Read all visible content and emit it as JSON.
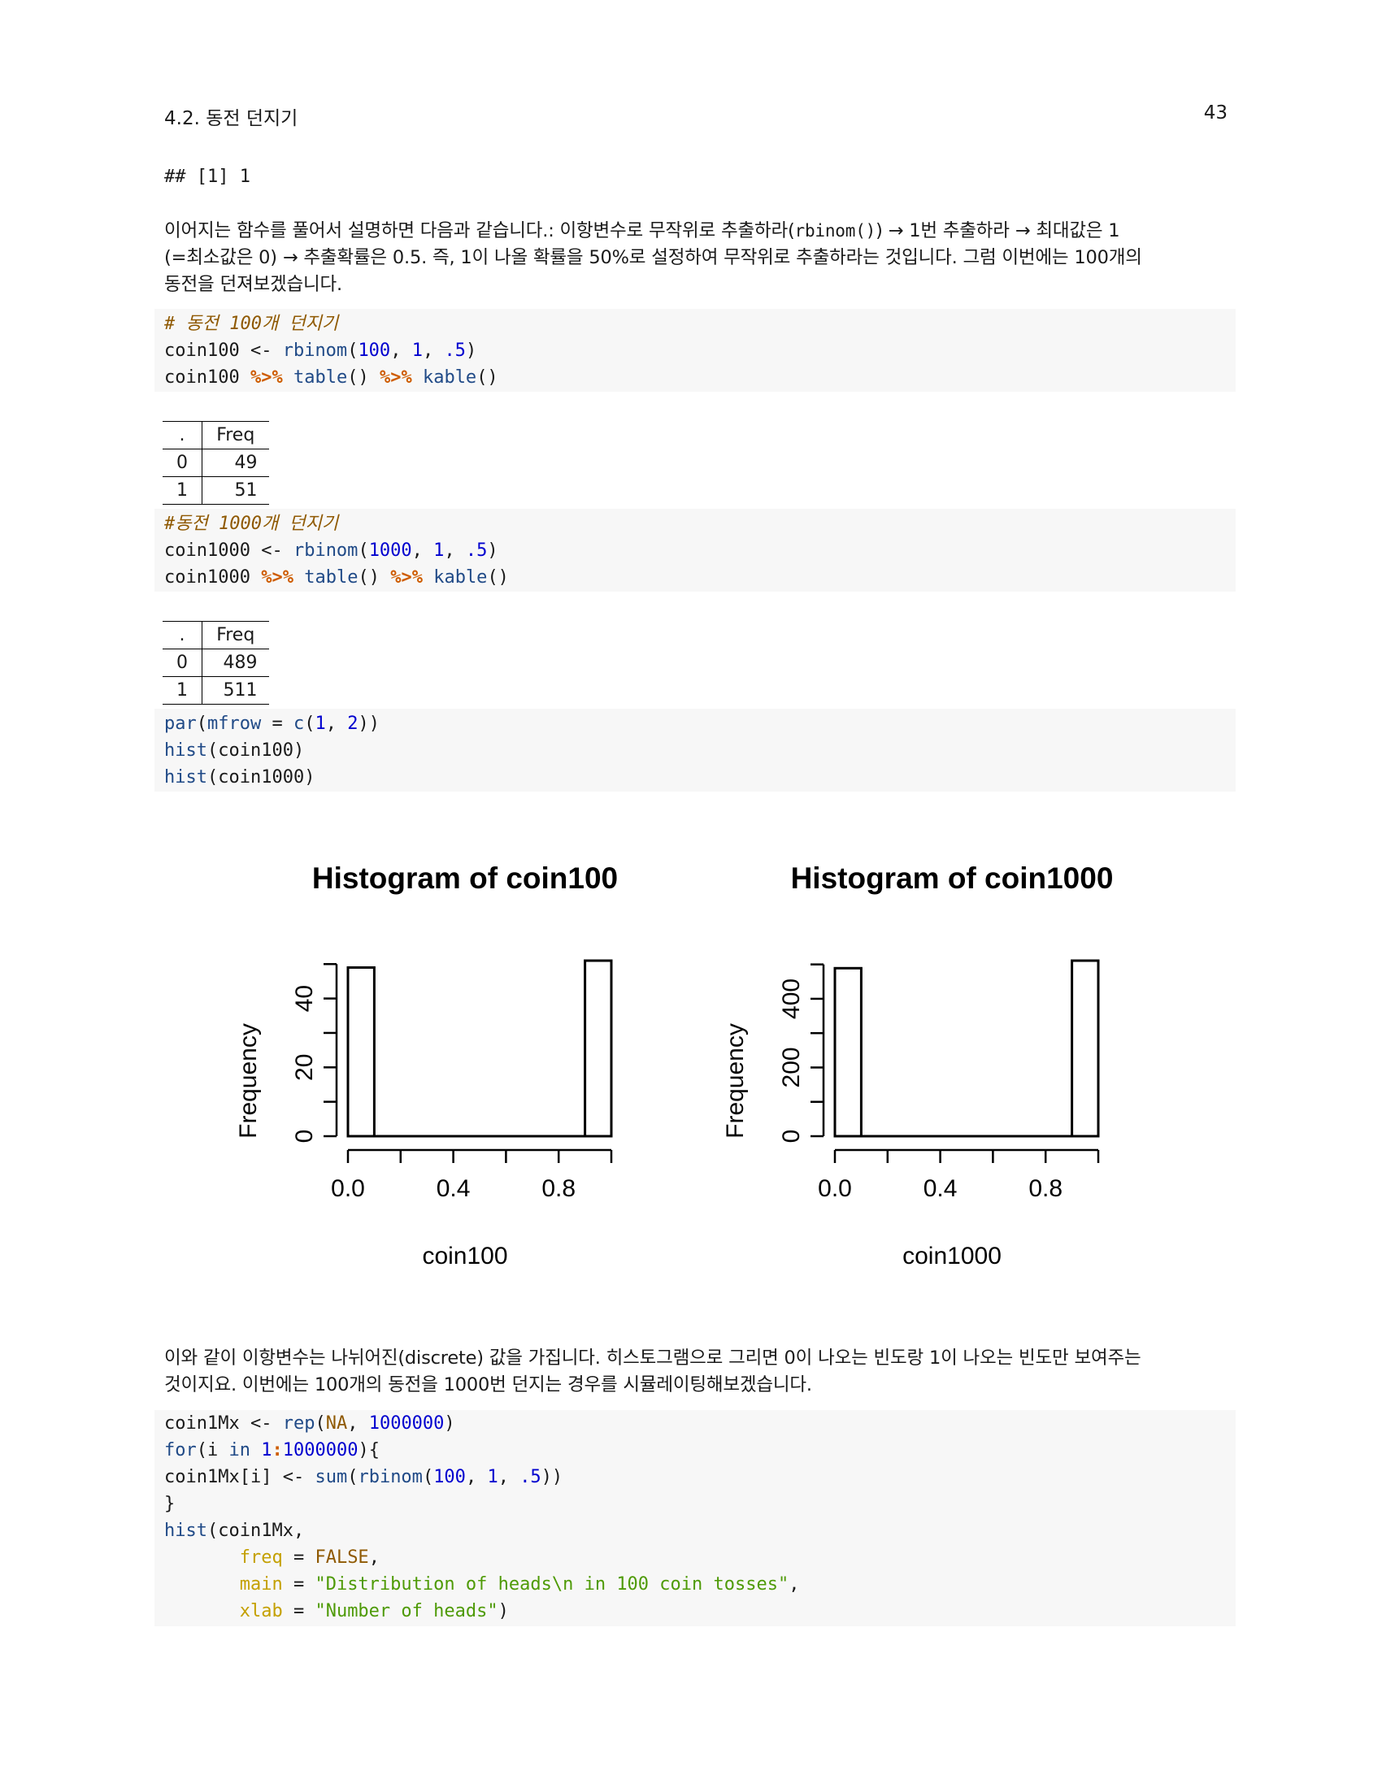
{
  "header": {
    "section": "4.2.  동전 던지기",
    "page_number": "43"
  },
  "output1": "## [1] 1",
  "para1": {
    "line1_a": "이어지는 함수를 풀어서 설명하면 다음과 같습니다.: 이항변수로 무작위로 추출하라(",
    "line1_code": "rbinom()",
    "line1_b": ") → 1번 추출하라 → 최대값은 1",
    "line2": "(=최소값은 0) → 추출확률은 0.5. 즉, 1이 나올 확률을 50%로 설정하여 무작위로 추출하라는 것입니다. 그럼 이번에는 100개의",
    "line3": "동전을 던져보겠습니다."
  },
  "code1": {
    "comment": "# 동전 100개 던지기",
    "var": "coin100",
    "assign": " <- ",
    "fn_rbinom": "rbinom",
    "arg_n": "100",
    "arg_size": "1",
    "arg_p": ".5",
    "pipe": "%>%",
    "fn_table": "table",
    "fn_kable": "kable"
  },
  "table1": {
    "header": [
      ".",
      "Freq"
    ],
    "rows": [
      [
        "0",
        "49"
      ],
      [
        "1",
        "51"
      ]
    ]
  },
  "code2": {
    "comment": "#동전 1000개 던지기",
    "var": "coin1000",
    "arg_n": "1000"
  },
  "table2": {
    "header": [
      ".",
      "Freq"
    ],
    "rows": [
      [
        "0",
        "489"
      ],
      [
        "1",
        "511"
      ]
    ]
  },
  "code3": {
    "fn_par": "par",
    "arg_mfrow": "mfrow",
    "fn_c": "c",
    "v1": "1",
    "v2": "2",
    "fn_hist": "hist",
    "var1": "coin100",
    "var2": "coin1000"
  },
  "chart_data": [
    {
      "type": "bar",
      "title": "Histogram of coin100",
      "xlabel": "coin100",
      "ylabel": "Frequency",
      "bins": [
        [
          0.0,
          0.1
        ],
        [
          0.9,
          1.0
        ]
      ],
      "values": [
        49,
        51
      ],
      "xticks": [
        "0.0",
        "0.4",
        "0.8"
      ],
      "xtick_values": [
        0.0,
        0.2,
        0.4,
        0.6,
        0.8,
        1.0
      ],
      "yticks": [
        "0",
        "20",
        "40"
      ],
      "ytick_values": [
        0,
        10,
        20,
        30,
        40,
        50
      ],
      "xlim": [
        0,
        1
      ],
      "ylim": [
        0,
        51
      ]
    },
    {
      "type": "bar",
      "title": "Histogram of coin1000",
      "xlabel": "coin1000",
      "ylabel": "Frequency",
      "bins": [
        [
          0.0,
          0.1
        ],
        [
          0.9,
          1.0
        ]
      ],
      "values": [
        489,
        511
      ],
      "xticks": [
        "0.0",
        "0.4",
        "0.8"
      ],
      "xtick_values": [
        0.0,
        0.2,
        0.4,
        0.6,
        0.8,
        1.0
      ],
      "yticks": [
        "0",
        "200",
        "400"
      ],
      "ytick_values": [
        0,
        100,
        200,
        300,
        400,
        500
      ],
      "xlim": [
        0,
        1
      ],
      "ylim": [
        0,
        511
      ]
    }
  ],
  "para2": {
    "line1": "이와 같이 이항변수는 나뉘어진(discrete) 값을 가집니다. 히스토그램으로 그리면 0이 나오는 빈도랑 1이 나오는 빈도만 보여주는",
    "line2": "것이지요. 이번에는 100개의 동전을 1000번 던지는 경우를 시뮬레이팅해보겠습니다."
  },
  "code4": {
    "var": "coin1Mx",
    "fn_rep": "rep",
    "na": "NA",
    "big": "1000000",
    "kw_for": "for",
    "loop_var": "i",
    "kw_in": "in",
    "one": "1",
    "index": "[i]",
    "fn_sum": "sum",
    "close_brace": "}",
    "arg_freq": "freq",
    "false": "FALSE",
    "arg_main": "main",
    "main_str": "\"Distribution of heads\\n in 100 coin tosses\"",
    "arg_xlab": "xlab",
    "xlab_str": "\"Number of heads\""
  }
}
